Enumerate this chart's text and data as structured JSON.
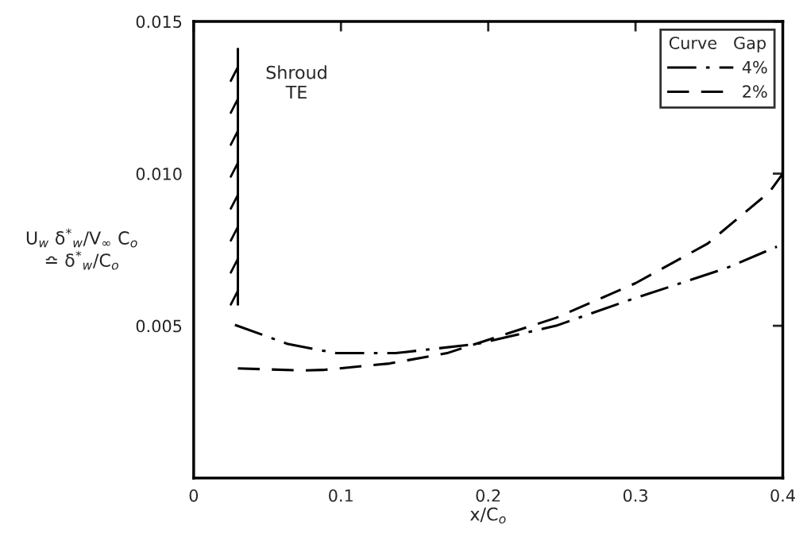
{
  "chart_data": {
    "type": "line",
    "xlabel": "x/C$_{o}$",
    "ylabel": "U$_{w}$ δ$^{*}$$_{w}$/V$_{∞}$ C$_{o}$\n≏ δ$^{*}$$_{w}$/C$_{o}$",
    "legend_title": "Curve   Gap",
    "legend": "top right",
    "xlim": [
      0,
      0.4
    ],
    "xticks": [
      0,
      0.1,
      0.2,
      0.3,
      0.4
    ],
    "ylim": [
      0,
      0.015
    ],
    "yticks": [
      0.005,
      {
        "value": 0.01,
        "label": "0.010"
      },
      0.015
    ],
    "grid": false,
    "series": [
      {
        "name": "4%",
        "color": "#000000",
        "line_style": "dashdot",
        "x": [
          0.028,
          0.064,
          0.097,
          0.137,
          0.192,
          0.246,
          0.293,
          0.362,
          0.396
        ],
        "values": [
          0.00503,
          0.0044,
          0.0041,
          0.0041,
          0.0044,
          0.005,
          0.0058,
          0.0069,
          0.0076
        ]
      },
      {
        "name": "2%",
        "color": "#000000",
        "line_style": "dashed",
        "x": [
          0.03,
          0.074,
          0.088,
          0.133,
          0.172,
          0.246,
          0.3,
          0.349,
          0.391,
          0.4
        ],
        "values": [
          0.0036,
          0.00353,
          0.00355,
          0.00376,
          0.0041,
          0.00526,
          0.0064,
          0.0077,
          0.0094,
          0.01
        ]
      },
      {
        "color": "#000000",
        "line_style": "solid",
        "x": [
          0.03,
          0.03
        ],
        "values": [
          0.0057,
          0.0141
        ]
      }
    ],
    "annotations": [
      {
        "text": "Shroud\nTE",
        "x": 0.03,
        "y": 0.0141
      }
    ]
  }
}
